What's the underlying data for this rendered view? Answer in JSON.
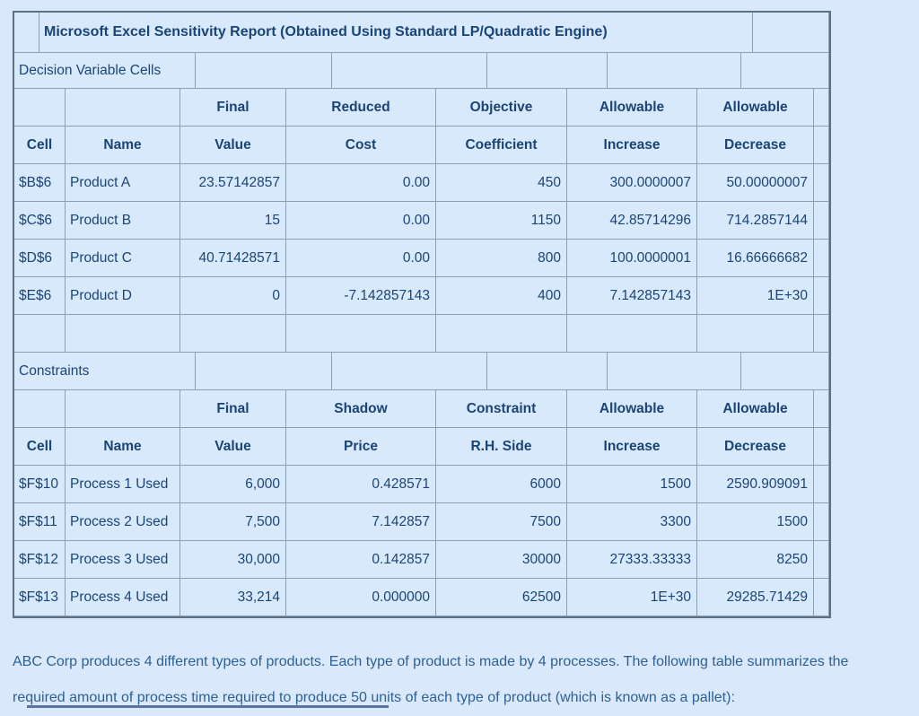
{
  "title": "Microsoft Excel Sensitivity Report (Obtained Using Standard LP/Quadratic Engine)",
  "decision": {
    "label": "Decision Variable Cells",
    "h1": [
      "Final",
      "Reduced",
      "Objective",
      "Allowable",
      "Allowable"
    ],
    "h2": [
      "Cell",
      "Name",
      "Value",
      "Cost",
      "Coefficient",
      "Increase",
      "Decrease"
    ],
    "rows": [
      [
        "$B$6",
        "Product A",
        "23.57142857",
        "0.00",
        "450",
        "300.0000007",
        "50.00000007"
      ],
      [
        "$C$6",
        "Product B",
        "15",
        "0.00",
        "1150",
        "42.85714296",
        "714.2857144"
      ],
      [
        "$D$6",
        "Product C",
        "40.71428571",
        "0.00",
        "800",
        "100.0000001",
        "16.66666682"
      ],
      [
        "$E$6",
        "Product D",
        "0",
        "-7.142857143",
        "400",
        "7.142857143",
        "1E+30"
      ]
    ]
  },
  "constraints": {
    "label": "Constraints",
    "h1": [
      "Final",
      "Shadow",
      "Constraint",
      "Allowable",
      "Allowable"
    ],
    "h2": [
      "Cell",
      "Name",
      "Value",
      "Price",
      "R.H. Side",
      "Increase",
      "Decrease"
    ],
    "rows": [
      [
        "$F$10",
        "Process 1 Used",
        "6,000",
        "0.428571",
        "6000",
        "1500",
        "2590.909091"
      ],
      [
        "$F$11",
        "Process 2 Used",
        "7,500",
        "7.142857",
        "7500",
        "3300",
        "1500"
      ],
      [
        "$F$12",
        "Process 3 Used",
        "30,000",
        "0.142857",
        "30000",
        "27333.33333",
        "8250"
      ],
      [
        "$F$13",
        "Process 4 Used",
        "33,214",
        "0.000000",
        "62500",
        "1E+30",
        "29285.71429"
      ]
    ]
  },
  "note": "ABC Corp produces 4 different types of products. Each type of product is made by 4 processes. The following table summarizes the required amount of process time required to produce 50 units of each type of product (which is known as a pallet):",
  "colors": {
    "background": "#d9e9fb",
    "table_text": "#1b4476",
    "note_text": "#2e6094",
    "grid_line": "#8aa0b4",
    "outline": "#5b7089"
  }
}
